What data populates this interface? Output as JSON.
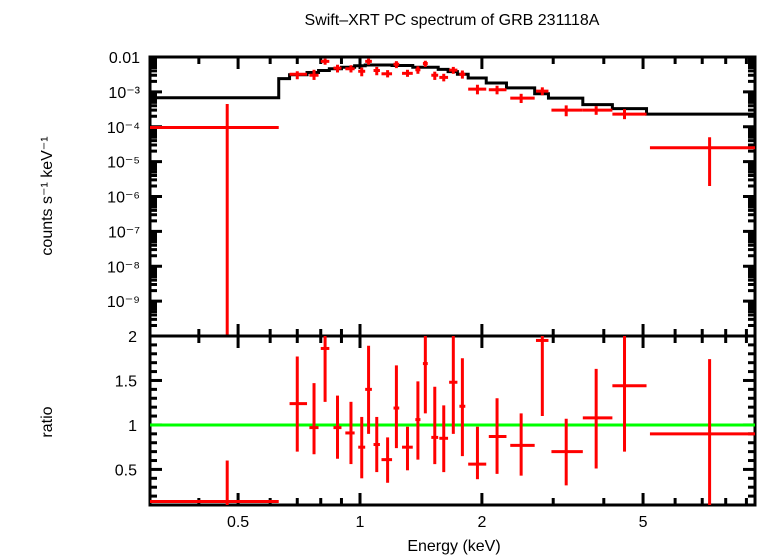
{
  "chart_data": {
    "type": "scatter",
    "title": "Swift–XRT PC spectrum of GRB 231118A",
    "xlabel": "Energy (keV)",
    "xscale": "log",
    "xlim": [
      0.303,
      9.45
    ],
    "xticks": [
      {
        "value": 0.5,
        "label": "0.5"
      },
      {
        "value": 1,
        "label": "1"
      },
      {
        "value": 2,
        "label": "2"
      },
      {
        "value": 5,
        "label": "5"
      }
    ],
    "panels": [
      {
        "name": "spectrum",
        "ylabel": "counts s⁻¹ keV⁻¹",
        "yscale": "log",
        "ylim": [
          1e-10,
          0.01
        ],
        "yticks": [
          {
            "value": 0.01,
            "label": "0.01"
          },
          {
            "value": 0.001,
            "label": "10⁻³"
          },
          {
            "value": 0.0001,
            "label": "10⁻⁴"
          },
          {
            "value": 1e-05,
            "label": "10⁻⁵"
          },
          {
            "value": 1e-06,
            "label": "10⁻⁶"
          },
          {
            "value": 1e-07,
            "label": "10⁻⁷"
          },
          {
            "value": 1e-08,
            "label": "10⁻⁸"
          },
          {
            "value": 1e-09,
            "label": "10⁻⁹"
          }
        ],
        "series": [
          {
            "name": "data",
            "color": "#ff0000",
            "points": [
              {
                "x": 0.47,
                "xlo": 0.303,
                "xhi": 0.63,
                "y": 9.5e-05,
                "ylo": 1e-10,
                "yhi": 0.00045
              },
              {
                "x": 0.7,
                "xlo": 0.67,
                "xhi": 0.74,
                "y": 0.0032,
                "ylo": 0.0023,
                "yhi": 0.0039
              },
              {
                "x": 0.77,
                "xlo": 0.75,
                "xhi": 0.79,
                "y": 0.003,
                "ylo": 0.0022,
                "yhi": 0.0043
              },
              {
                "x": 0.82,
                "xlo": 0.8,
                "xhi": 0.84,
                "y": 0.0075,
                "ylo": 0.006,
                "yhi": 0.009
              },
              {
                "x": 0.88,
                "xlo": 0.86,
                "xhi": 0.9,
                "y": 0.0048,
                "ylo": 0.0036,
                "yhi": 0.006
              },
              {
                "x": 0.95,
                "xlo": 0.92,
                "xhi": 0.97,
                "y": 0.0046,
                "ylo": 0.0036,
                "yhi": 0.0058
              },
              {
                "x": 1.01,
                "xlo": 0.99,
                "xhi": 1.03,
                "y": 0.0039,
                "ylo": 0.0028,
                "yhi": 0.005
              },
              {
                "x": 1.05,
                "xlo": 1.03,
                "xhi": 1.07,
                "y": 0.0075,
                "ylo": 0.006,
                "yhi": 0.009
              },
              {
                "x": 1.1,
                "xlo": 1.08,
                "xhi": 1.12,
                "y": 0.0041,
                "ylo": 0.003,
                "yhi": 0.0052
              },
              {
                "x": 1.17,
                "xlo": 1.13,
                "xhi": 1.2,
                "y": 0.0033,
                "ylo": 0.0026,
                "yhi": 0.0042
              },
              {
                "x": 1.23,
                "xlo": 1.21,
                "xhi": 1.25,
                "y": 0.0062,
                "ylo": 0.0048,
                "yhi": 0.0076
              },
              {
                "x": 1.31,
                "xlo": 1.27,
                "xhi": 1.35,
                "y": 0.0034,
                "ylo": 0.0027,
                "yhi": 0.0043
              },
              {
                "x": 1.39,
                "xlo": 1.37,
                "xhi": 1.41,
                "y": 0.0043,
                "ylo": 0.0033,
                "yhi": 0.0054
              },
              {
                "x": 1.45,
                "xlo": 1.43,
                "xhi": 1.47,
                "y": 0.0065,
                "ylo": 0.0052,
                "yhi": 0.0078
              },
              {
                "x": 1.53,
                "xlo": 1.5,
                "xhi": 1.56,
                "y": 0.003,
                "ylo": 0.0022,
                "yhi": 0.0038
              },
              {
                "x": 1.61,
                "xlo": 1.57,
                "xhi": 1.65,
                "y": 0.0026,
                "ylo": 0.002,
                "yhi": 0.0033
              },
              {
                "x": 1.7,
                "xlo": 1.66,
                "xhi": 1.74,
                "y": 0.0042,
                "ylo": 0.0033,
                "yhi": 0.0052
              },
              {
                "x": 1.79,
                "xlo": 1.76,
                "xhi": 1.82,
                "y": 0.0032,
                "ylo": 0.0024,
                "yhi": 0.0041
              },
              {
                "x": 1.95,
                "xlo": 1.85,
                "xhi": 2.05,
                "y": 0.0012,
                "ylo": 0.00085,
                "yhi": 0.0016
              },
              {
                "x": 2.18,
                "xlo": 2.08,
                "xhi": 2.3,
                "y": 0.00115,
                "ylo": 0.00085,
                "yhi": 0.0015
              },
              {
                "x": 2.5,
                "xlo": 2.35,
                "xhi": 2.7,
                "y": 0.00066,
                "ylo": 0.00048,
                "yhi": 0.00088
              },
              {
                "x": 2.82,
                "xlo": 2.72,
                "xhi": 2.92,
                "y": 0.00105,
                "ylo": 0.0008,
                "yhi": 0.00135
              },
              {
                "x": 3.23,
                "xlo": 2.97,
                "xhi": 3.55,
                "y": 0.0003,
                "ylo": 0.0002,
                "yhi": 0.00041
              },
              {
                "x": 3.83,
                "xlo": 3.55,
                "xhi": 4.2,
                "y": 0.0003,
                "ylo": 0.00022,
                "yhi": 0.00039
              },
              {
                "x": 4.5,
                "xlo": 4.2,
                "xhi": 5.1,
                "y": 0.00023,
                "ylo": 0.000165,
                "yhi": 0.00032
              },
              {
                "x": 7.3,
                "xlo": 5.2,
                "xhi": 9.45,
                "y": 2.5e-05,
                "ylo": 2e-06,
                "yhi": 5e-05
              }
            ]
          },
          {
            "name": "model",
            "color": "#000000",
            "step_edges": [
              0.303,
              0.63,
              0.67,
              0.74,
              0.79,
              0.84,
              0.9,
              0.97,
              1.03,
              1.2,
              1.35,
              1.56,
              1.65,
              1.74,
              1.85,
              2.05,
              2.3,
              2.7,
              2.92,
              3.55,
              4.2,
              5.1,
              9.45
            ],
            "step_values": [
              0.00068,
              0.0024,
              0.0031,
              0.0036,
              0.0041,
              0.0046,
              0.0051,
              0.0056,
              0.0059,
              0.0057,
              0.0051,
              0.0044,
              0.0038,
              0.0032,
              0.0025,
              0.0018,
              0.0013,
              0.00088,
              0.00066,
              0.00043,
              0.00033,
              0.00023,
              2.5e-05
            ]
          }
        ]
      },
      {
        "name": "ratio",
        "ylabel": "ratio",
        "yscale": "linear",
        "ylim": [
          0.1,
          2.0
        ],
        "yticks": [
          {
            "value": 2,
            "label": "2"
          },
          {
            "value": 1.5,
            "label": "1.5"
          },
          {
            "value": 1,
            "label": "1"
          },
          {
            "value": 0.5,
            "label": "0.5"
          }
        ],
        "reference_line": {
          "value": 1,
          "color": "#00ff00"
        },
        "series": [
          {
            "name": "ratio",
            "color": "#ff0000",
            "points": [
              {
                "x": 0.47,
                "xlo": 0.303,
                "xhi": 0.63,
                "y": 0.14,
                "ylo": 0.1,
                "yhi": 0.6
              },
              {
                "x": 0.7,
                "xlo": 0.67,
                "xhi": 0.74,
                "y": 1.24,
                "ylo": 0.7,
                "yhi": 1.77
              },
              {
                "x": 0.77,
                "xlo": 0.75,
                "xhi": 0.79,
                "y": 0.97,
                "ylo": 0.67,
                "yhi": 1.47
              },
              {
                "x": 0.82,
                "xlo": 0.8,
                "xhi": 0.84,
                "y": 1.86,
                "ylo": 1.26,
                "yhi": 2.0
              },
              {
                "x": 0.88,
                "xlo": 0.86,
                "xhi": 0.9,
                "y": 0.97,
                "ylo": 0.62,
                "yhi": 1.33
              },
              {
                "x": 0.95,
                "xlo": 0.92,
                "xhi": 0.97,
                "y": 0.91,
                "ylo": 0.56,
                "yhi": 1.26
              },
              {
                "x": 1.01,
                "xlo": 0.99,
                "xhi": 1.03,
                "y": 0.75,
                "ylo": 0.4,
                "yhi": 1.09
              },
              {
                "x": 1.05,
                "xlo": 1.03,
                "xhi": 1.07,
                "y": 1.4,
                "ylo": 0.9,
                "yhi": 1.89
              },
              {
                "x": 1.1,
                "xlo": 1.08,
                "xhi": 1.12,
                "y": 0.78,
                "ylo": 0.47,
                "yhi": 1.09
              },
              {
                "x": 1.17,
                "xlo": 1.13,
                "xhi": 1.2,
                "y": 0.61,
                "ylo": 0.35,
                "yhi": 0.86
              },
              {
                "x": 1.23,
                "xlo": 1.21,
                "xhi": 1.25,
                "y": 1.19,
                "ylo": 0.74,
                "yhi": 1.67
              },
              {
                "x": 1.31,
                "xlo": 1.27,
                "xhi": 1.35,
                "y": 0.75,
                "ylo": 0.49,
                "yhi": 0.98
              },
              {
                "x": 1.39,
                "xlo": 1.37,
                "xhi": 1.41,
                "y": 1.06,
                "ylo": 0.61,
                "yhi": 1.49
              },
              {
                "x": 1.45,
                "xlo": 1.43,
                "xhi": 1.47,
                "y": 1.69,
                "ylo": 1.13,
                "yhi": 2.0
              },
              {
                "x": 1.53,
                "xlo": 1.5,
                "xhi": 1.56,
                "y": 0.86,
                "ylo": 0.56,
                "yhi": 1.43
              },
              {
                "x": 1.61,
                "xlo": 1.57,
                "xhi": 1.65,
                "y": 0.85,
                "ylo": 0.47,
                "yhi": 1.22
              },
              {
                "x": 1.7,
                "xlo": 1.66,
                "xhi": 1.74,
                "y": 1.48,
                "ylo": 0.9,
                "yhi": 2.0
              },
              {
                "x": 1.79,
                "xlo": 1.76,
                "xhi": 1.82,
                "y": 1.21,
                "ylo": 0.65,
                "yhi": 1.75
              },
              {
                "x": 1.95,
                "xlo": 1.85,
                "xhi": 2.05,
                "y": 0.56,
                "ylo": 0.39,
                "yhi": 0.98
              },
              {
                "x": 2.18,
                "xlo": 2.08,
                "xhi": 2.3,
                "y": 0.87,
                "ylo": 0.45,
                "yhi": 1.3
              },
              {
                "x": 2.5,
                "xlo": 2.35,
                "xhi": 2.7,
                "y": 0.77,
                "ylo": 0.43,
                "yhi": 1.13
              },
              {
                "x": 2.82,
                "xlo": 2.72,
                "xhi": 2.92,
                "y": 1.95,
                "ylo": 1.1,
                "yhi": 2.0
              },
              {
                "x": 3.23,
                "xlo": 2.97,
                "xhi": 3.55,
                "y": 0.7,
                "ylo": 0.32,
                "yhi": 1.07
              },
              {
                "x": 3.83,
                "xlo": 3.55,
                "xhi": 4.2,
                "y": 1.08,
                "ylo": 0.51,
                "yhi": 1.63
              },
              {
                "x": 4.5,
                "xlo": 4.2,
                "xhi": 5.1,
                "y": 1.44,
                "ylo": 0.7,
                "yhi": 2.0
              },
              {
                "x": 7.3,
                "xlo": 5.2,
                "xhi": 9.45,
                "y": 0.9,
                "ylo": 0.1,
                "yhi": 1.74
              }
            ]
          }
        ]
      }
    ]
  }
}
